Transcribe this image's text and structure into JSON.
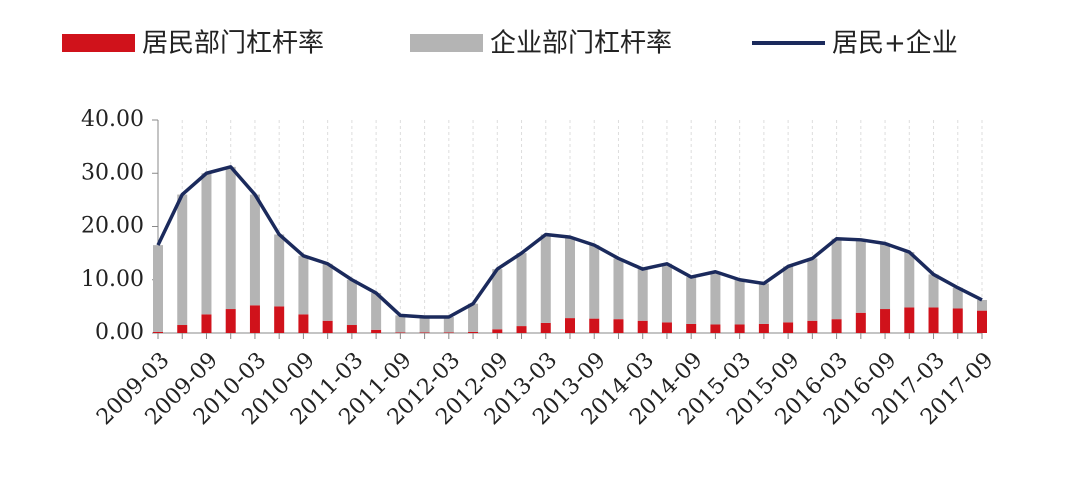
{
  "chart_data": {
    "type": "stacked-bar-line",
    "categories": [
      "2009-03",
      null,
      "2009-09",
      null,
      "2010-03",
      null,
      "2010-09",
      null,
      "2011-03",
      null,
      "2011-09",
      null,
      "2012-03",
      null,
      "2012-09",
      null,
      "2013-03",
      null,
      "2013-09",
      null,
      "2014-03",
      null,
      "2014-09",
      null,
      "2015-03",
      null,
      "2015-09",
      null,
      "2016-03",
      null,
      "2016-09",
      null,
      "2017-03",
      null,
      "2017-09"
    ],
    "series": [
      {
        "name": "居民部门杠杆率",
        "color": "#d0121b",
        "kind": "bar",
        "values": [
          0.2,
          1.5,
          3.5,
          4.5,
          5.2,
          5,
          3.5,
          2.3,
          1.5,
          0.6,
          0.1,
          0.1,
          0.1,
          0.2,
          0.7,
          1.3,
          1.9,
          2.8,
          2.7,
          2.6,
          2.3,
          2.0,
          1.7,
          1.6,
          1.6,
          1.7,
          2.0,
          2.3,
          2.6,
          3.8,
          4.5,
          4.8,
          4.8,
          4.6,
          4.2
        ]
      },
      {
        "name": "企业部门杠杆率",
        "color": "#b4b4b4",
        "kind": "bar",
        "values": [
          16.3,
          24.5,
          26.5,
          26.7,
          20.8,
          13.5,
          11,
          10.7,
          8.5,
          6.9,
          3.2,
          2.9,
          2.9,
          5.3,
          11.3,
          13.7,
          16.6,
          15.2,
          13.8,
          11.4,
          9.7,
          11,
          8.8,
          9.9,
          8.4,
          7.6,
          10.5,
          11.7,
          15.1,
          13.7,
          12.3,
          10.4,
          6.2,
          3.9,
          2.0
        ]
      },
      {
        "name": "居民+企业",
        "color": "#1b2a5c",
        "kind": "line",
        "values": [
          16.5,
          26,
          30,
          31.2,
          26,
          18.5,
          14.5,
          13,
          10,
          7.5,
          3.3,
          3,
          3,
          5.5,
          12,
          15,
          18.5,
          18,
          16.5,
          14,
          12,
          13,
          10.5,
          11.5,
          10,
          9.3,
          12.5,
          14,
          17.7,
          17.5,
          16.8,
          15.2,
          11,
          8.5,
          6.2
        ]
      }
    ],
    "ylim": [
      0,
      40
    ],
    "yticks": [
      {
        "value": 0,
        "label": "0.00"
      },
      {
        "value": 10,
        "label": "10.00"
      },
      {
        "value": 20,
        "label": "20.00"
      },
      {
        "value": 30,
        "label": "30.00"
      },
      {
        "value": 40,
        "label": "40.00"
      }
    ]
  }
}
